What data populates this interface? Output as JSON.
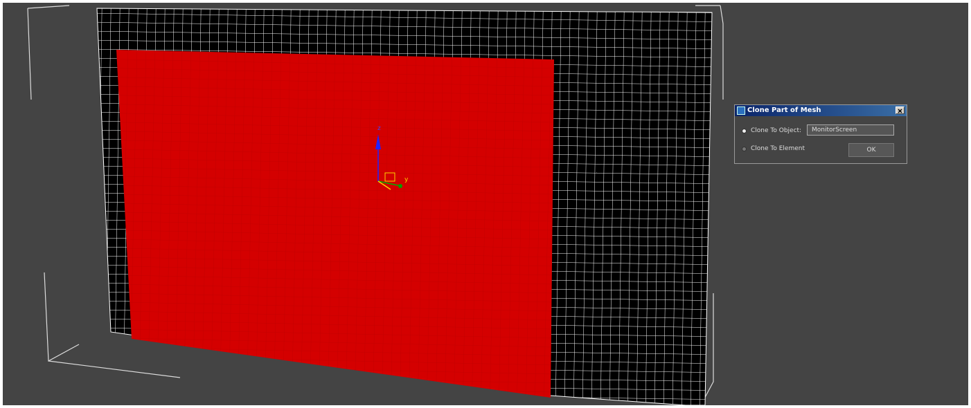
{
  "dialog": {
    "title": "Clone Part of Mesh",
    "options": [
      {
        "label": "Clone To Object:"
      },
      {
        "label": "Clone To Element"
      }
    ],
    "object_name": "MonitorScreen",
    "ok_button": "OK"
  },
  "gizmo": {
    "z_label": "z",
    "y_label": "y"
  }
}
